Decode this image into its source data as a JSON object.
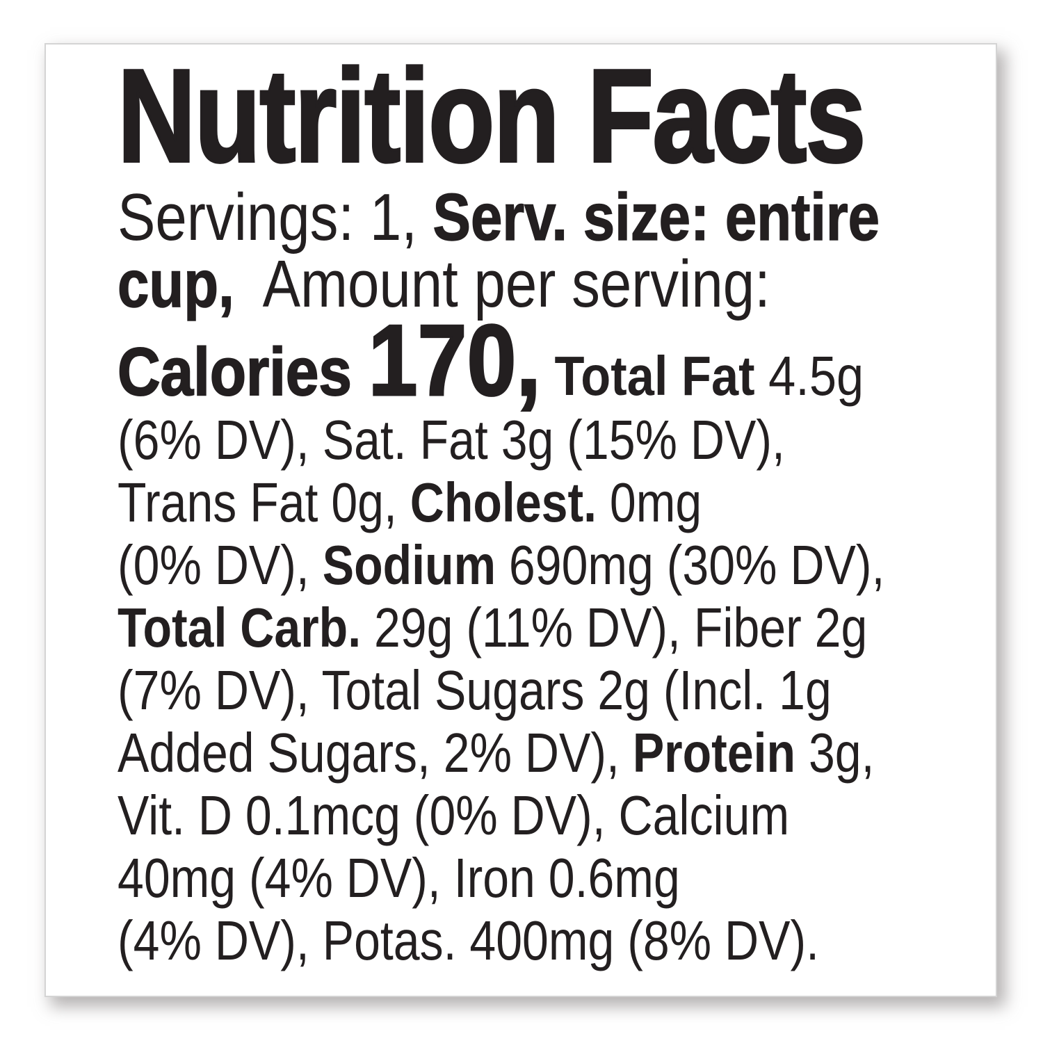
{
  "colors": {
    "text": "#231f20",
    "card_background": "#ffffff",
    "card_border": "#d4d4d4",
    "page_background": "#ffffff"
  },
  "label": {
    "title": "Nutrition Facts",
    "lines": [
      {
        "segments": [
          {
            "text": "Servings: 1, ",
            "bold": false
          },
          {
            "text": "Serv. size: entire",
            "bold": true
          }
        ]
      },
      {
        "segments": [
          {
            "text": "cup, ",
            "bold": true
          },
          {
            "text": " Amount per serving:",
            "bold": false
          }
        ]
      },
      {
        "segments": [
          {
            "text": "Calories ",
            "bold": true
          },
          {
            "text": "170,",
            "bold": true
          },
          {
            "text": " Total Fat ",
            "bold": true
          },
          {
            "text": "4.5g",
            "bold": false
          }
        ]
      },
      {
        "segments": [
          {
            "text": "(6% DV), Sat. Fat 3g (15% DV),",
            "bold": false
          }
        ]
      },
      {
        "segments": [
          {
            "text": "Trans Fat 0g, ",
            "bold": false
          },
          {
            "text": "Cholest. ",
            "bold": true
          },
          {
            "text": "0mg",
            "bold": false
          }
        ]
      },
      {
        "segments": [
          {
            "text": "(0% DV), ",
            "bold": false
          },
          {
            "text": "Sodium ",
            "bold": true
          },
          {
            "text": "690mg (30% DV),",
            "bold": false
          }
        ]
      },
      {
        "segments": [
          {
            "text": "Total Carb. ",
            "bold": true
          },
          {
            "text": "29g (11% DV), Fiber 2g",
            "bold": false
          }
        ]
      },
      {
        "segments": [
          {
            "text": "(7% DV), Total Sugars 2g (Incl. 1g",
            "bold": false
          }
        ]
      },
      {
        "segments": [
          {
            "text": "Added Sugars, 2% DV), ",
            "bold": false
          },
          {
            "text": "Protein ",
            "bold": true
          },
          {
            "text": "3g,",
            "bold": false
          }
        ]
      },
      {
        "segments": [
          {
            "text": "Vit. D 0.1mcg (0% DV), Calcium",
            "bold": false
          }
        ]
      },
      {
        "segments": [
          {
            "text": "40mg (4% DV), Iron 0.6mg",
            "bold": false
          }
        ]
      },
      {
        "segments": [
          {
            "text": "(4% DV), Potas. 400mg (8% DV).",
            "bold": false
          }
        ]
      }
    ]
  }
}
